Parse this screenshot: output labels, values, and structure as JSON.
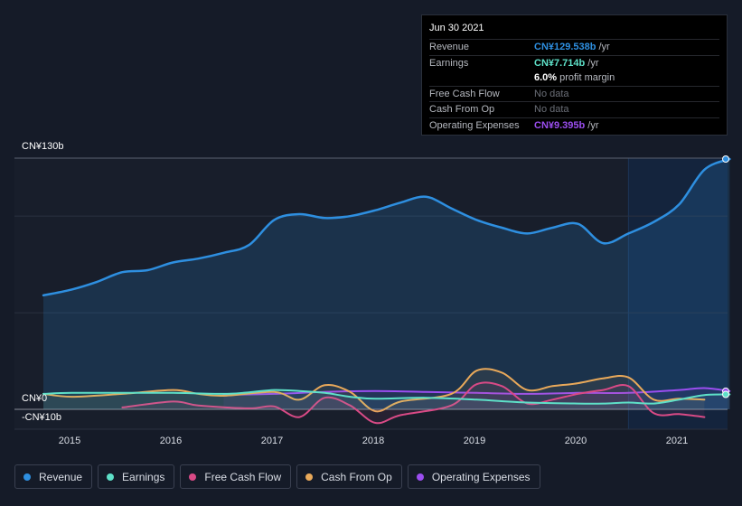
{
  "chart_data": {
    "type": "line",
    "x_ticks": [
      "2015",
      "2016",
      "2017",
      "2018",
      "2019",
      "2020",
      "2021"
    ],
    "y_ticks": [
      {
        "value": 130,
        "label": "CN¥130b"
      },
      {
        "value": 0,
        "label": "CN¥0"
      },
      {
        "value": -10,
        "label": "-CN¥10b"
      }
    ],
    "ylim": [
      -10,
      130
    ],
    "forecast_start": 2020.5,
    "series": [
      {
        "name": "Revenue",
        "color": "#2e8fe0",
        "area": true,
        "points": [
          [
            2014.72,
            59
          ],
          [
            2015.0,
            62
          ],
          [
            2015.25,
            66
          ],
          [
            2015.5,
            71
          ],
          [
            2015.75,
            72
          ],
          [
            2016.0,
            76
          ],
          [
            2016.25,
            78
          ],
          [
            2016.5,
            81
          ],
          [
            2016.75,
            85
          ],
          [
            2017.0,
            98
          ],
          [
            2017.25,
            101
          ],
          [
            2017.5,
            99
          ],
          [
            2017.75,
            100
          ],
          [
            2018.0,
            103
          ],
          [
            2018.25,
            107
          ],
          [
            2018.5,
            110
          ],
          [
            2018.75,
            104
          ],
          [
            2019.0,
            98
          ],
          [
            2019.25,
            94
          ],
          [
            2019.5,
            91
          ],
          [
            2019.75,
            94
          ],
          [
            2020.0,
            96
          ],
          [
            2020.25,
            86
          ],
          [
            2020.5,
            91
          ],
          [
            2020.75,
            97
          ],
          [
            2021.0,
            106
          ],
          [
            2021.25,
            124
          ],
          [
            2021.5,
            129.538
          ]
        ]
      },
      {
        "name": "Earnings",
        "color": "#5ee0c8",
        "points": [
          [
            2014.72,
            8
          ],
          [
            2015.0,
            8.5
          ],
          [
            2015.5,
            8.5
          ],
          [
            2016.0,
            8.5
          ],
          [
            2016.5,
            8
          ],
          [
            2016.75,
            8.8
          ],
          [
            2017.0,
            10
          ],
          [
            2017.25,
            9.5
          ],
          [
            2017.5,
            8.5
          ],
          [
            2017.75,
            6.5
          ],
          [
            2018.0,
            5.5
          ],
          [
            2018.5,
            6
          ],
          [
            2019.0,
            5
          ],
          [
            2019.5,
            3.5
          ],
          [
            2020.0,
            3
          ],
          [
            2020.25,
            3
          ],
          [
            2020.5,
            3.5
          ],
          [
            2020.75,
            3
          ],
          [
            2021.0,
            5
          ],
          [
            2021.25,
            7.4
          ],
          [
            2021.5,
            7.714
          ]
        ]
      },
      {
        "name": "Free Cash Flow",
        "color": "#d94a86",
        "points": [
          [
            2015.5,
            1
          ],
          [
            2016.0,
            4
          ],
          [
            2016.25,
            2
          ],
          [
            2016.75,
            0.5
          ],
          [
            2017.0,
            1.5
          ],
          [
            2017.25,
            -4
          ],
          [
            2017.5,
            6
          ],
          [
            2017.75,
            2
          ],
          [
            2018.0,
            -7
          ],
          [
            2018.25,
            -3
          ],
          [
            2018.75,
            2
          ],
          [
            2019.0,
            13
          ],
          [
            2019.25,
            12
          ],
          [
            2019.5,
            3
          ],
          [
            2019.75,
            5
          ],
          [
            2020.0,
            8
          ],
          [
            2020.25,
            10
          ],
          [
            2020.5,
            12
          ],
          [
            2020.75,
            -2
          ],
          [
            2021.0,
            -2.5
          ],
          [
            2021.25,
            -4
          ]
        ]
      },
      {
        "name": "Cash From Op",
        "color": "#e9a95a",
        "points": [
          [
            2014.72,
            8
          ],
          [
            2015.0,
            6.5
          ],
          [
            2015.5,
            8
          ],
          [
            2016.0,
            10
          ],
          [
            2016.25,
            8
          ],
          [
            2016.5,
            7
          ],
          [
            2017.0,
            9
          ],
          [
            2017.25,
            5
          ],
          [
            2017.5,
            12.5
          ],
          [
            2017.75,
            9
          ],
          [
            2018.0,
            -1
          ],
          [
            2018.25,
            4
          ],
          [
            2018.75,
            8
          ],
          [
            2019.0,
            20
          ],
          [
            2019.25,
            19
          ],
          [
            2019.5,
            10
          ],
          [
            2019.75,
            12
          ],
          [
            2020.0,
            13.5
          ],
          [
            2020.25,
            16
          ],
          [
            2020.5,
            16.5
          ],
          [
            2020.75,
            5
          ],
          [
            2021.0,
            5.5
          ],
          [
            2021.25,
            5
          ]
        ]
      },
      {
        "name": "Operating Expenses",
        "color": "#9b4ef0",
        "points": [
          [
            2016.5,
            7.5
          ],
          [
            2017.0,
            8
          ],
          [
            2017.5,
            9
          ],
          [
            2018.0,
            9.5
          ],
          [
            2018.5,
            9
          ],
          [
            2019.0,
            8.5
          ],
          [
            2019.5,
            8
          ],
          [
            2020.0,
            8.5
          ],
          [
            2020.5,
            8.5
          ],
          [
            2021.0,
            10
          ],
          [
            2021.25,
            11
          ],
          [
            2021.5,
            9.395
          ]
        ]
      }
    ]
  },
  "tooltip": {
    "date": "Jun 30 2021",
    "rows": [
      {
        "label": "Revenue",
        "value": "CN¥129.538b",
        "unit": "/yr",
        "color": "#2e8fe0"
      },
      {
        "label": "Earnings",
        "value": "CN¥7.714b",
        "unit": "/yr",
        "color": "#5ee0c8"
      },
      {
        "label": "",
        "value": "6.0%",
        "unit": "profit margin",
        "color": "#ffffff"
      },
      {
        "label": "Free Cash Flow",
        "value": "No data",
        "unit": "",
        "color": ""
      },
      {
        "label": "Cash From Op",
        "value": "No data",
        "unit": "",
        "color": ""
      },
      {
        "label": "Operating Expenses",
        "value": "CN¥9.395b",
        "unit": "/yr",
        "color": "#9b4ef0"
      }
    ]
  },
  "legend": [
    {
      "label": "Revenue",
      "color": "#2e8fe0"
    },
    {
      "label": "Earnings",
      "color": "#5ee0c8"
    },
    {
      "label": "Free Cash Flow",
      "color": "#d94a86"
    },
    {
      "label": "Cash From Op",
      "color": "#e9a95a"
    },
    {
      "label": "Operating Expenses",
      "color": "#9b4ef0"
    }
  ]
}
